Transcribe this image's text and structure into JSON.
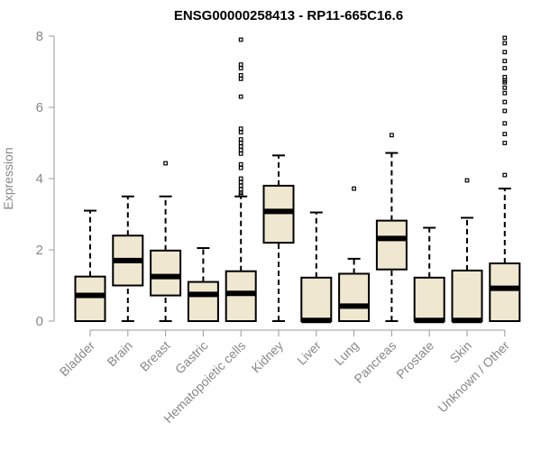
{
  "chart_data": {
    "type": "box",
    "title": "ENSG00000258413 - RP11-665C16.6",
    "xlabel": "",
    "ylabel": "Expression",
    "ylim": [
      0,
      8
    ],
    "yticks": [
      0,
      2,
      4,
      6,
      8
    ],
    "grid": false,
    "colors": {
      "box_fill": "#efe7cf",
      "box_stroke": "#000000",
      "axis": "#999999",
      "text_gray": "#888888"
    },
    "categories": [
      "Bladder",
      "Brain",
      "Breast",
      "Gastric",
      "Hematopoietic cells",
      "Kidney",
      "Liver",
      "Lung",
      "Pancreas",
      "Prostate",
      "Skin",
      "Unknown / Other"
    ],
    "boxes": [
      {
        "category": "Bladder",
        "min": 0,
        "q1": 0,
        "median": 0.72,
        "q3": 1.25,
        "max": 3.1,
        "outliers": []
      },
      {
        "category": "Brain",
        "min": 0,
        "q1": 1.0,
        "median": 1.7,
        "q3": 2.4,
        "max": 3.5,
        "outliers": []
      },
      {
        "category": "Breast",
        "min": 0,
        "q1": 0.72,
        "median": 1.25,
        "q3": 1.98,
        "max": 3.5,
        "outliers": [
          4.43
        ]
      },
      {
        "category": "Gastric",
        "min": 0,
        "q1": 0,
        "median": 0.75,
        "q3": 1.1,
        "max": 2.05,
        "outliers": []
      },
      {
        "category": "Hematopoietic cells",
        "min": 0,
        "q1": 0,
        "median": 0.78,
        "q3": 1.4,
        "max": 3.5,
        "outliers": [
          7.9,
          7.2,
          7.1,
          6.9,
          6.8,
          6.3,
          5.4,
          5.3,
          5.1,
          5.0,
          4.9,
          4.8,
          4.7,
          4.4,
          4.3,
          4.0,
          3.9,
          3.8,
          3.7,
          3.6,
          3.55
        ]
      },
      {
        "category": "Kidney",
        "min": 0,
        "q1": 2.2,
        "median": 3.08,
        "q3": 3.8,
        "max": 4.65,
        "outliers": []
      },
      {
        "category": "Liver",
        "min": 0,
        "q1": 0,
        "median": 0.02,
        "q3": 1.22,
        "max": 3.05,
        "outliers": []
      },
      {
        "category": "Lung",
        "min": 0,
        "q1": 0,
        "median": 0.42,
        "q3": 1.33,
        "max": 1.75,
        "outliers": [
          3.72
        ]
      },
      {
        "category": "Pancreas",
        "min": 0,
        "q1": 1.45,
        "median": 2.32,
        "q3": 2.82,
        "max": 4.72,
        "outliers": [
          5.22
        ]
      },
      {
        "category": "Prostate",
        "min": 0,
        "q1": 0,
        "median": 0.02,
        "q3": 1.22,
        "max": 2.62,
        "outliers": []
      },
      {
        "category": "Skin",
        "min": 0,
        "q1": 0,
        "median": 0.02,
        "q3": 1.42,
        "max": 2.9,
        "outliers": [
          3.95
        ]
      },
      {
        "category": "Unknown / Other",
        "min": 0,
        "q1": 0,
        "median": 0.92,
        "q3": 1.62,
        "max": 3.72,
        "outliers": [
          7.95,
          7.8,
          7.55,
          7.3,
          7.1,
          6.85,
          6.75,
          6.7,
          6.55,
          6.4,
          6.15,
          5.9,
          5.55,
          5.25,
          5.0,
          4.1
        ]
      }
    ]
  }
}
